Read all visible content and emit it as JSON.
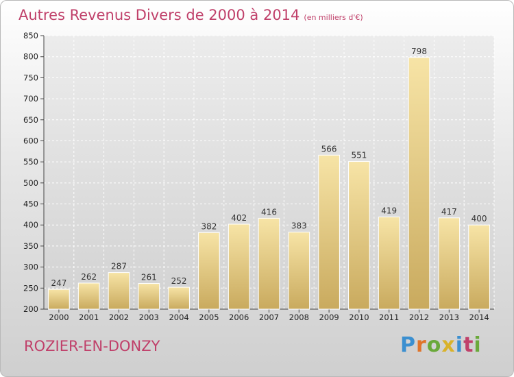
{
  "header": {
    "title": "Autres Revenus Divers de 2000 à 2014",
    "subtitle": "(en milliers d'€)"
  },
  "footer": {
    "place": "ROZIER-EN-DONZY",
    "logo_text": "Proxiti",
    "logo_colors": [
      "#3b8fd0",
      "#e0742a",
      "#6aa93a",
      "#d9b22a",
      "#3b8fd0",
      "#c0406a",
      "#6aa93a"
    ]
  },
  "chart_data": {
    "type": "bar",
    "title": "Autres Revenus Divers de 2000 à 2014",
    "subtitle": "(en milliers d'€)",
    "categories": [
      "2000",
      "2001",
      "2002",
      "2003",
      "2004",
      "2005",
      "2006",
      "2007",
      "2008",
      "2009",
      "2010",
      "2011",
      "2012",
      "2013",
      "2014"
    ],
    "values": [
      247,
      262,
      287,
      261,
      252,
      382,
      402,
      416,
      383,
      566,
      551,
      419,
      798,
      417,
      400
    ],
    "ylim": [
      200,
      850
    ],
    "yticks": [
      200,
      250,
      300,
      350,
      400,
      450,
      500,
      550,
      600,
      650,
      700,
      750,
      800,
      850
    ],
    "grid": true,
    "bar_color": "#e8cf8a"
  }
}
